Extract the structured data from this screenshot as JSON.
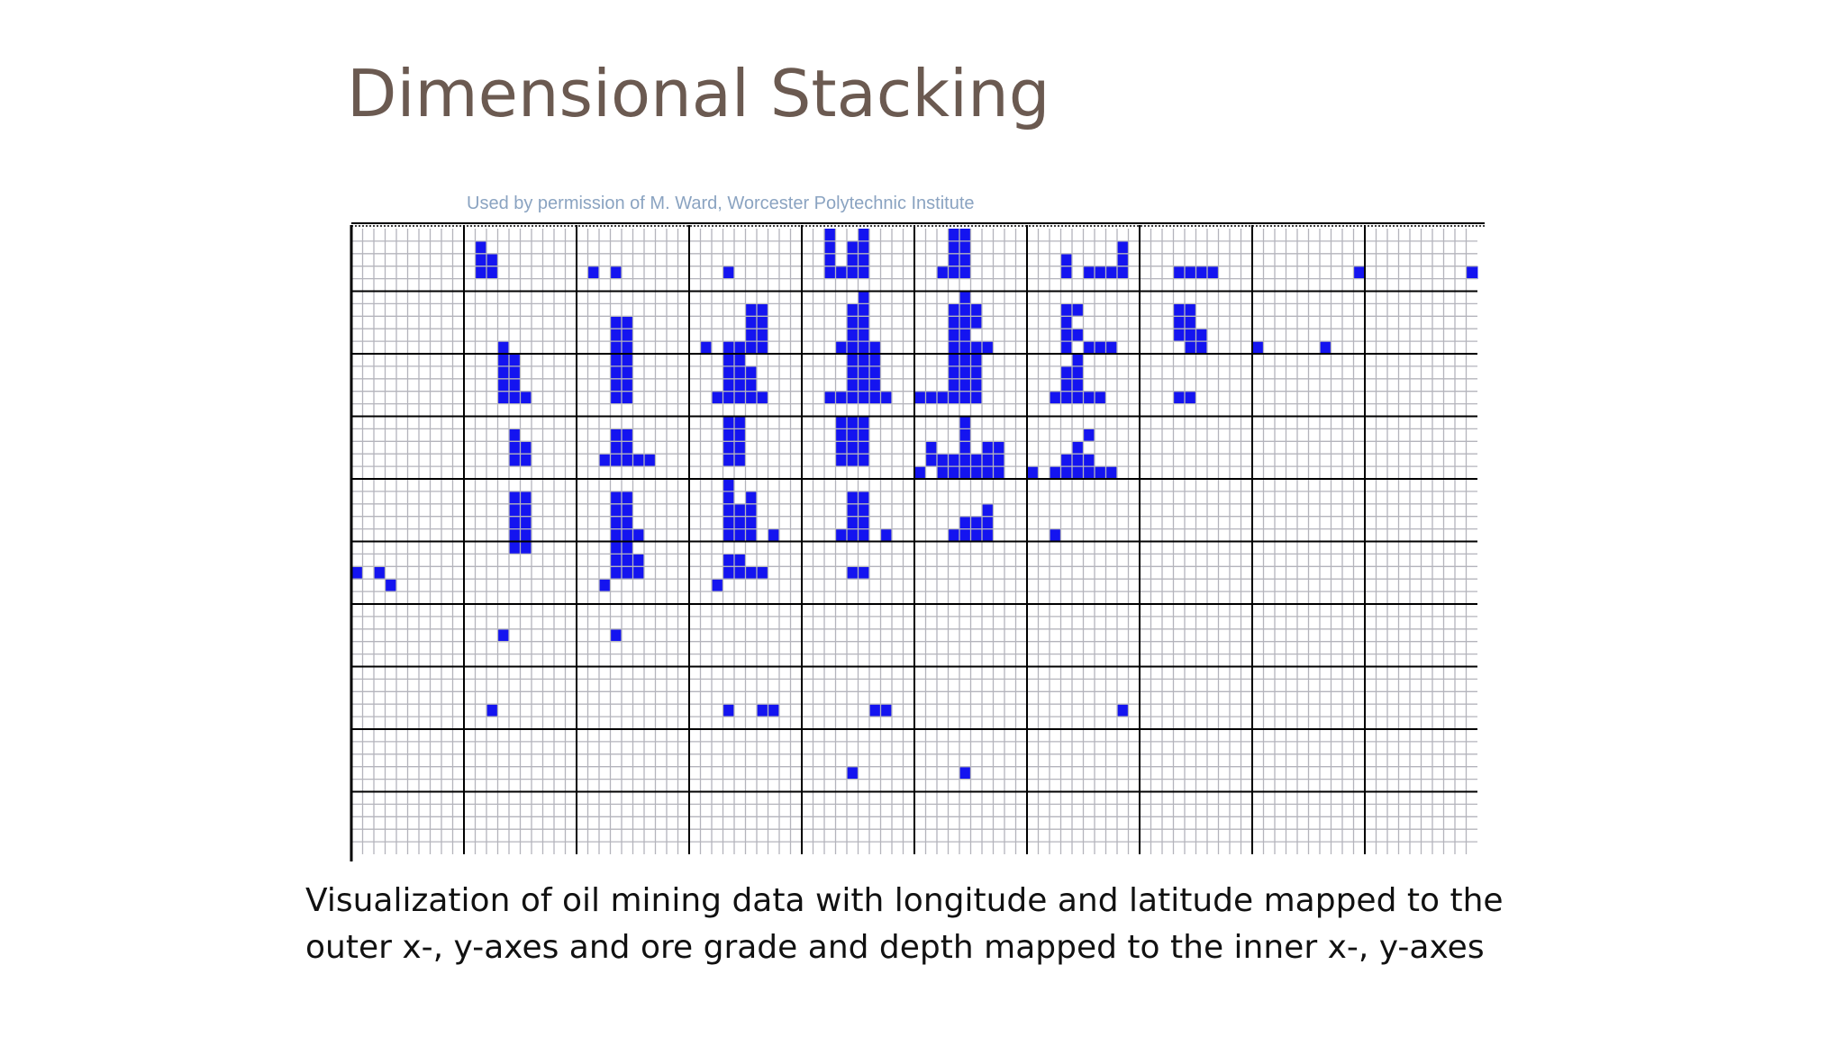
{
  "title": "Dimensional Stacking",
  "credit": "Used by permission of M. Ward, Worcester Polytechnic Institute",
  "caption": {
    "line1": "Visualization of oil mining data with longitude and latitude mapped to the",
    "line2": "outer x-, y-axes and ore grade and depth mapped to the inner x-, y-axes"
  },
  "colors": {
    "title": "#6b5a51",
    "credit": "#8aa3c1",
    "cell": "#1414f0",
    "grid_minor": "#b4b4bc",
    "grid_major": "#000000"
  },
  "stack": {
    "outer_cols": 10,
    "outer_rows": 10,
    "inner_cols": 10,
    "inner_rows": 5,
    "filled_cells": [
      [
        11,
        1
      ],
      [
        11,
        2
      ],
      [
        11,
        3
      ],
      [
        12,
        2
      ],
      [
        12,
        3
      ],
      [
        21,
        3
      ],
      [
        23,
        3
      ],
      [
        33,
        3
      ],
      [
        42,
        0
      ],
      [
        42,
        1
      ],
      [
        42,
        2
      ],
      [
        42,
        3
      ],
      [
        44,
        1
      ],
      [
        44,
        2
      ],
      [
        44,
        3
      ],
      [
        45,
        0
      ],
      [
        45,
        1
      ],
      [
        45,
        2
      ],
      [
        45,
        3
      ],
      [
        43,
        3
      ],
      [
        53,
        0
      ],
      [
        53,
        1
      ],
      [
        53,
        2
      ],
      [
        53,
        3
      ],
      [
        54,
        0
      ],
      [
        54,
        1
      ],
      [
        54,
        2
      ],
      [
        54,
        3
      ],
      [
        52,
        3
      ],
      [
        63,
        2
      ],
      [
        63,
        3
      ],
      [
        65,
        3
      ],
      [
        66,
        3
      ],
      [
        67,
        3
      ],
      [
        68,
        1
      ],
      [
        68,
        2
      ],
      [
        68,
        3
      ],
      [
        73,
        3
      ],
      [
        74,
        3
      ],
      [
        75,
        3
      ],
      [
        76,
        3
      ],
      [
        89,
        3
      ],
      [
        99,
        3
      ],
      [
        13,
        9
      ],
      [
        23,
        7
      ],
      [
        23,
        8
      ],
      [
        23,
        9
      ],
      [
        24,
        7
      ],
      [
        24,
        8
      ],
      [
        24,
        9
      ],
      [
        31,
        9
      ],
      [
        33,
        9
      ],
      [
        34,
        9
      ],
      [
        35,
        6
      ],
      [
        35,
        7
      ],
      [
        35,
        8
      ],
      [
        35,
        9
      ],
      [
        36,
        6
      ],
      [
        36,
        7
      ],
      [
        36,
        8
      ],
      [
        36,
        9
      ],
      [
        44,
        6
      ],
      [
        44,
        7
      ],
      [
        44,
        8
      ],
      [
        44,
        9
      ],
      [
        45,
        5
      ],
      [
        45,
        6
      ],
      [
        45,
        7
      ],
      [
        45,
        8
      ],
      [
        45,
        9
      ],
      [
        43,
        9
      ],
      [
        46,
        9
      ],
      [
        53,
        6
      ],
      [
        53,
        7
      ],
      [
        53,
        8
      ],
      [
        53,
        9
      ],
      [
        54,
        5
      ],
      [
        54,
        6
      ],
      [
        54,
        7
      ],
      [
        54,
        8
      ],
      [
        54,
        9
      ],
      [
        55,
        7
      ],
      [
        55,
        9
      ],
      [
        56,
        9
      ],
      [
        55,
        6
      ],
      [
        63,
        6
      ],
      [
        63,
        7
      ],
      [
        63,
        8
      ],
      [
        63,
        9
      ],
      [
        64,
        6
      ],
      [
        64,
        8
      ],
      [
        65,
        9
      ],
      [
        66,
        9
      ],
      [
        67,
        9
      ],
      [
        73,
        6
      ],
      [
        73,
        7
      ],
      [
        73,
        8
      ],
      [
        74,
        6
      ],
      [
        74,
        7
      ],
      [
        74,
        8
      ],
      [
        74,
        9
      ],
      [
        75,
        8
      ],
      [
        75,
        9
      ],
      [
        80,
        9
      ],
      [
        86,
        9
      ],
      [
        13,
        10
      ],
      [
        13,
        11
      ],
      [
        13,
        12
      ],
      [
        13,
        13
      ],
      [
        14,
        10
      ],
      [
        14,
        11
      ],
      [
        14,
        12
      ],
      [
        14,
        13
      ],
      [
        15,
        13
      ],
      [
        23,
        10
      ],
      [
        23,
        11
      ],
      [
        23,
        12
      ],
      [
        23,
        13
      ],
      [
        24,
        10
      ],
      [
        24,
        11
      ],
      [
        24,
        12
      ],
      [
        24,
        13
      ],
      [
        33,
        10
      ],
      [
        33,
        11
      ],
      [
        33,
        12
      ],
      [
        33,
        13
      ],
      [
        34,
        10
      ],
      [
        34,
        11
      ],
      [
        34,
        12
      ],
      [
        34,
        13
      ],
      [
        35,
        11
      ],
      [
        35,
        12
      ],
      [
        35,
        13
      ],
      [
        32,
        13
      ],
      [
        36,
        13
      ],
      [
        43,
        13
      ],
      [
        44,
        10
      ],
      [
        44,
        11
      ],
      [
        44,
        12
      ],
      [
        44,
        13
      ],
      [
        45,
        10
      ],
      [
        45,
        11
      ],
      [
        45,
        12
      ],
      [
        45,
        13
      ],
      [
        46,
        10
      ],
      [
        46,
        11
      ],
      [
        46,
        12
      ],
      [
        46,
        13
      ],
      [
        42,
        13
      ],
      [
        47,
        13
      ],
      [
        53,
        10
      ],
      [
        53,
        11
      ],
      [
        53,
        12
      ],
      [
        53,
        13
      ],
      [
        54,
        10
      ],
      [
        54,
        11
      ],
      [
        54,
        12
      ],
      [
        54,
        13
      ],
      [
        55,
        10
      ],
      [
        55,
        11
      ],
      [
        55,
        12
      ],
      [
        55,
        13
      ],
      [
        50,
        13
      ],
      [
        51,
        13
      ],
      [
        52,
        13
      ],
      [
        63,
        11
      ],
      [
        63,
        12
      ],
      [
        63,
        13
      ],
      [
        64,
        10
      ],
      [
        64,
        11
      ],
      [
        64,
        12
      ],
      [
        64,
        13
      ],
      [
        62,
        13
      ],
      [
        65,
        13
      ],
      [
        66,
        13
      ],
      [
        73,
        13
      ],
      [
        74,
        13
      ],
      [
        14,
        16
      ],
      [
        14,
        17
      ],
      [
        15,
        17
      ],
      [
        15,
        18
      ],
      [
        14,
        18
      ],
      [
        23,
        16
      ],
      [
        23,
        17
      ],
      [
        23,
        18
      ],
      [
        24,
        16
      ],
      [
        24,
        17
      ],
      [
        24,
        18
      ],
      [
        22,
        18
      ],
      [
        25,
        18
      ],
      [
        26,
        18
      ],
      [
        33,
        15
      ],
      [
        33,
        16
      ],
      [
        33,
        17
      ],
      [
        33,
        18
      ],
      [
        34,
        15
      ],
      [
        34,
        16
      ],
      [
        34,
        17
      ],
      [
        34,
        18
      ],
      [
        43,
        15
      ],
      [
        43,
        16
      ],
      [
        43,
        17
      ],
      [
        43,
        18
      ],
      [
        44,
        15
      ],
      [
        44,
        16
      ],
      [
        44,
        17
      ],
      [
        44,
        18
      ],
      [
        45,
        15
      ],
      [
        45,
        16
      ],
      [
        45,
        17
      ],
      [
        45,
        18
      ],
      [
        54,
        15
      ],
      [
        54,
        16
      ],
      [
        54,
        17
      ],
      [
        54,
        18
      ],
      [
        53,
        18
      ],
      [
        55,
        18
      ],
      [
        56,
        18
      ],
      [
        57,
        18
      ],
      [
        52,
        18
      ],
      [
        50,
        19
      ],
      [
        53,
        19
      ],
      [
        52,
        19
      ],
      [
        54,
        19
      ],
      [
        55,
        19
      ],
      [
        56,
        19
      ],
      [
        57,
        19
      ],
      [
        56,
        17
      ],
      [
        57,
        17
      ],
      [
        51,
        17
      ],
      [
        51,
        18
      ],
      [
        65,
        16
      ],
      [
        65,
        18
      ],
      [
        60,
        19
      ],
      [
        62,
        19
      ],
      [
        63,
        19
      ],
      [
        64,
        19
      ],
      [
        65,
        19
      ],
      [
        66,
        19
      ],
      [
        67,
        19
      ],
      [
        63,
        18
      ],
      [
        64,
        18
      ],
      [
        64,
        17
      ],
      [
        14,
        21
      ],
      [
        15,
        21
      ],
      [
        15,
        22
      ],
      [
        14,
        22
      ],
      [
        14,
        23
      ],
      [
        15,
        23
      ],
      [
        14,
        24
      ],
      [
        15,
        24
      ],
      [
        14,
        25
      ],
      [
        15,
        25
      ],
      [
        23,
        21
      ],
      [
        23,
        22
      ],
      [
        23,
        23
      ],
      [
        23,
        24
      ],
      [
        24,
        21
      ],
      [
        24,
        22
      ],
      [
        24,
        23
      ],
      [
        24,
        24
      ],
      [
        25,
        24
      ],
      [
        33,
        20
      ],
      [
        33,
        21
      ],
      [
        33,
        22
      ],
      [
        33,
        23
      ],
      [
        33,
        24
      ],
      [
        34,
        22
      ],
      [
        34,
        23
      ],
      [
        34,
        24
      ],
      [
        35,
        21
      ],
      [
        35,
        22
      ],
      [
        35,
        23
      ],
      [
        35,
        24
      ],
      [
        37,
        24
      ],
      [
        44,
        21
      ],
      [
        44,
        22
      ],
      [
        44,
        23
      ],
      [
        44,
        24
      ],
      [
        45,
        21
      ],
      [
        45,
        22
      ],
      [
        45,
        23
      ],
      [
        45,
        24
      ],
      [
        43,
        24
      ],
      [
        47,
        24
      ],
      [
        54,
        23
      ],
      [
        54,
        24
      ],
      [
        55,
        23
      ],
      [
        55,
        24
      ],
      [
        53,
        24
      ],
      [
        56,
        22
      ],
      [
        56,
        23
      ],
      [
        56,
        24
      ],
      [
        62,
        24
      ],
      [
        23,
        25
      ],
      [
        23,
        26
      ],
      [
        23,
        27
      ],
      [
        24,
        25
      ],
      [
        24,
        26
      ],
      [
        24,
        27
      ],
      [
        25,
        26
      ],
      [
        25,
        27
      ],
      [
        24,
        24
      ],
      [
        33,
        26
      ],
      [
        33,
        27
      ],
      [
        34,
        26
      ],
      [
        34,
        27
      ],
      [
        35,
        27
      ],
      [
        36,
        27
      ],
      [
        44,
        27
      ],
      [
        45,
        27
      ],
      [
        0,
        27
      ],
      [
        2,
        27
      ],
      [
        3,
        28
      ],
      [
        22,
        28
      ],
      [
        32,
        28
      ],
      [
        13,
        32
      ],
      [
        23,
        32
      ],
      [
        12,
        38
      ],
      [
        33,
        38
      ],
      [
        36,
        38
      ],
      [
        37,
        38
      ],
      [
        46,
        38
      ],
      [
        47,
        38
      ],
      [
        68,
        38
      ],
      [
        44,
        43
      ],
      [
        54,
        43
      ]
    ]
  }
}
